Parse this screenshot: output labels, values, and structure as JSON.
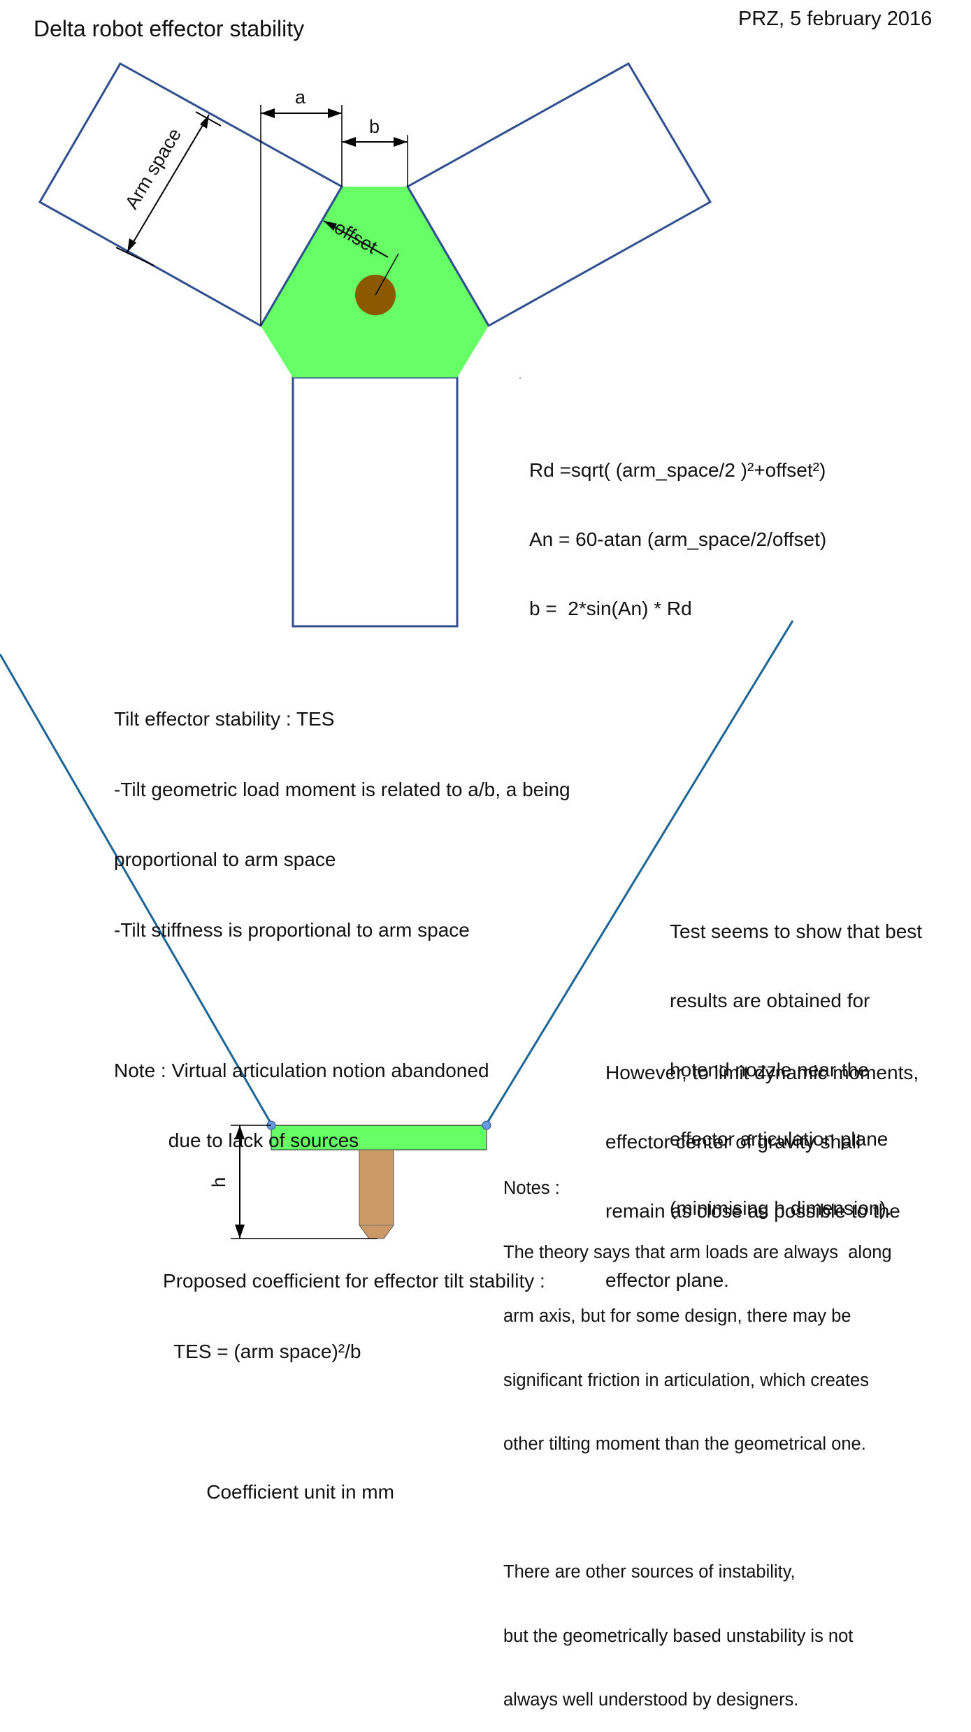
{
  "title": "Delta robot effector stability",
  "author_date": "PRZ, 5 february 2016",
  "top_view": {
    "label_a": "a",
    "label_b": "b",
    "label_arm_space": "Arm space",
    "label_offset": "offset"
  },
  "formulas": [
    "Rd =sqrt( (arm_space/2 )²+offset²)",
    "An = 60-atan (arm_space/2/offset)",
    "b =  2*sin(An) * Rd"
  ],
  "tes_block": [
    "Tilt effector stability : TES",
    "-Tilt geometric load moment is related to a/b, a being",
    "proportional to arm space",
    "-Tilt stiffness is proportional to arm space",
    "",
    "Note : Virtual articulation notion abandoned",
    "          due to lack of sources",
    "",
    "         Proposed coefficient for effector tilt stability :",
    "           TES = (arm space)²/b",
    "",
    "                 Coefficient unit in mm"
  ],
  "test_note": [
    "Test seems to show that best",
    "results are obtained for",
    "hotend nozzle near the",
    "effector articulation plane",
    "(minimising h dimension)."
  ],
  "however_note": [
    "However, to limit dynamic moments,",
    "effector center of gravity shall",
    "remain as close as possible to the",
    "effector plane."
  ],
  "side_view": {
    "label_h": "h"
  },
  "notes": [
    "Notes :",
    "The theory says that arm loads are always  along",
    "arm axis, but for some design, there may be",
    "significant friction in articulation, which creates",
    "other tilting moment than the geometrical one.",
    "",
    "There are other sources of instability,",
    "but the geometrically based unstability is not",
    "always well understood by designers."
  ],
  "colors": {
    "outline_blue": "#2e4f8f",
    "arm_line_blue": "#1a6496",
    "effector_green": "#66ff66",
    "nozzle_center_brown": "#8b5a00",
    "nozzle_tan": "#cc9966",
    "joint_blue": "#6699dd"
  }
}
